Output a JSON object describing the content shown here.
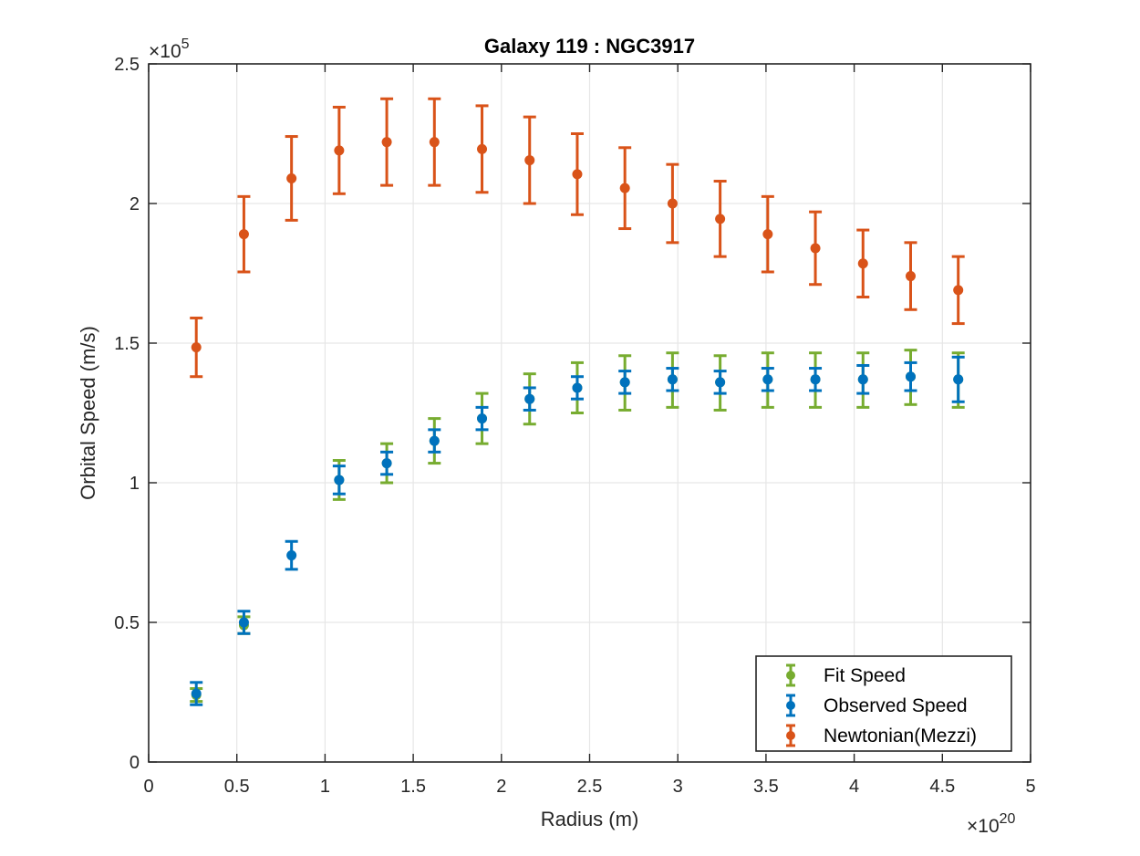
{
  "chart_data": {
    "type": "scatter",
    "title": "Galaxy 119 : NGC3917",
    "xlabel": "Radius (m)",
    "ylabel": "Orbital Speed (m/s)",
    "x_exponent_base": "×10",
    "x_exponent": "20",
    "y_exponent_base": "×10",
    "y_exponent": "5",
    "xlim": [
      0,
      5
    ],
    "ylim": [
      0,
      2.5
    ],
    "x_ticks": [
      "0",
      "0.5",
      "1",
      "1.5",
      "2",
      "2.5",
      "3",
      "3.5",
      "4",
      "4.5",
      "5"
    ],
    "y_ticks": [
      "0",
      "0.5",
      "1",
      "1.5",
      "2",
      "2.5"
    ],
    "grid": true,
    "legend_position": "bottom-right",
    "x": [
      0.27,
      0.54,
      0.81,
      1.08,
      1.35,
      1.62,
      1.89,
      2.16,
      2.43,
      2.7,
      2.97,
      3.24,
      3.51,
      3.78,
      4.05,
      4.32,
      4.59
    ],
    "series": [
      {
        "name": "Fit Speed",
        "color": "#77AC30",
        "values": [
          0.24,
          0.49,
          null,
          1.01,
          1.07,
          1.15,
          1.23,
          1.3,
          1.34,
          1.36,
          1.37,
          1.36,
          1.37,
          1.37,
          1.37,
          1.38,
          1.37
        ],
        "err_low": [
          0.023,
          0.03,
          null,
          0.07,
          0.07,
          0.08,
          0.09,
          0.09,
          0.09,
          0.1,
          0.1,
          0.1,
          0.1,
          0.1,
          0.1,
          0.1,
          0.1
        ],
        "err_high": [
          0.023,
          0.03,
          null,
          0.07,
          0.07,
          0.08,
          0.09,
          0.09,
          0.09,
          0.095,
          0.095,
          0.095,
          0.095,
          0.095,
          0.095,
          0.095,
          0.095
        ]
      },
      {
        "name": "Observed Speed",
        "color": "#0072BD",
        "values": [
          0.245,
          0.5,
          0.74,
          1.01,
          1.07,
          1.15,
          1.23,
          1.3,
          1.34,
          1.36,
          1.37,
          1.36,
          1.37,
          1.37,
          1.37,
          1.38,
          1.37
        ],
        "err_low": [
          0.04,
          0.04,
          0.05,
          0.05,
          0.04,
          0.04,
          0.04,
          0.04,
          0.04,
          0.04,
          0.04,
          0.04,
          0.04,
          0.04,
          0.05,
          0.05,
          0.08
        ],
        "err_high": [
          0.04,
          0.04,
          0.05,
          0.05,
          0.04,
          0.04,
          0.04,
          0.04,
          0.04,
          0.04,
          0.04,
          0.04,
          0.04,
          0.04,
          0.05,
          0.05,
          0.08
        ]
      },
      {
        "name": "Newtonian(Mezzi)",
        "color": "#D95319",
        "values": [
          1.485,
          1.89,
          2.09,
          2.19,
          2.22,
          2.22,
          2.195,
          2.155,
          2.105,
          2.055,
          2.0,
          1.945,
          1.89,
          1.84,
          1.785,
          1.74,
          1.69
        ],
        "err_low": [
          0.105,
          0.135,
          0.15,
          0.155,
          0.155,
          0.155,
          0.155,
          0.155,
          0.145,
          0.145,
          0.14,
          0.135,
          0.135,
          0.13,
          0.12,
          0.12,
          0.12
        ],
        "err_high": [
          0.105,
          0.135,
          0.15,
          0.155,
          0.155,
          0.155,
          0.155,
          0.155,
          0.145,
          0.145,
          0.14,
          0.135,
          0.135,
          0.13,
          0.12,
          0.12,
          0.12
        ]
      }
    ]
  }
}
